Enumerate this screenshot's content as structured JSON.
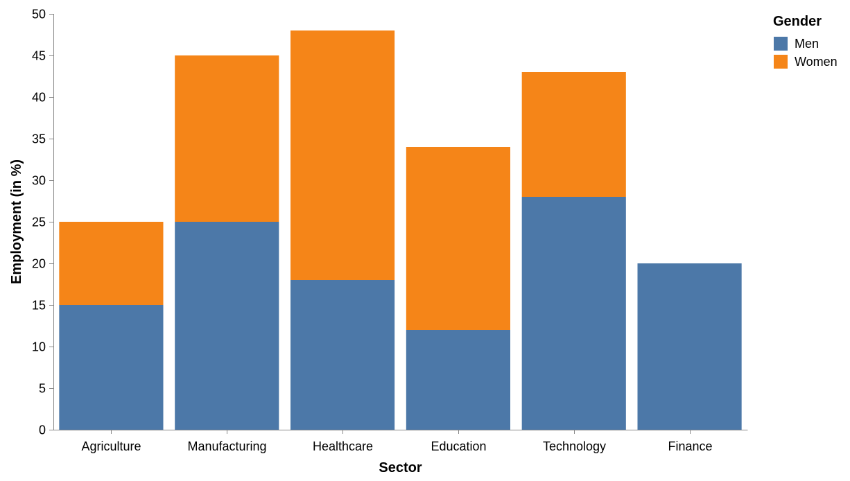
{
  "chart_data": {
    "type": "bar",
    "stacked": true,
    "categories": [
      "Agriculture",
      "Manufacturing",
      "Healthcare",
      "Education",
      "Technology",
      "Finance"
    ],
    "series": [
      {
        "name": "Men",
        "values": [
          15,
          25,
          18,
          12,
          28,
          20
        ],
        "color": "#4c78a8"
      },
      {
        "name": "Women",
        "values": [
          10,
          20,
          30,
          22,
          15,
          0
        ],
        "color": "#f58518"
      }
    ],
    "xlabel": "Sector",
    "ylabel": "Employment (in %)",
    "ylim": [
      0,
      50
    ],
    "yticks": [
      0,
      5,
      10,
      15,
      20,
      25,
      30,
      35,
      40,
      45,
      50
    ],
    "grid": false,
    "legend": {
      "title": "Gender",
      "position": "top-right"
    }
  }
}
